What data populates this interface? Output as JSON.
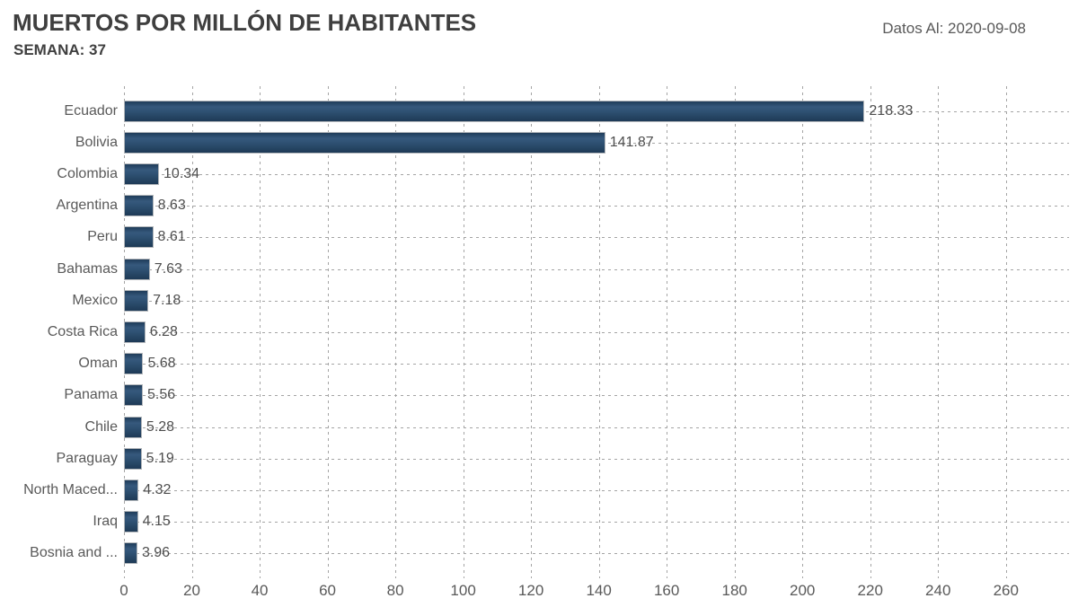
{
  "header": {
    "title": "MUERTOS POR MILLÓN DE HABITANTES",
    "subtitle": "SEMANA: 37",
    "data_as_of": "Datos Al: 2020-09-08"
  },
  "chart_data": {
    "type": "bar",
    "orientation": "horizontal",
    "title": "MUERTOS POR MILLÓN DE HABITANTES",
    "subtitle": "SEMANA: 37",
    "annotation": "Datos Al: 2020-09-08",
    "categories": [
      "Ecuador",
      "Bolivia",
      "Colombia",
      "Argentina",
      "Peru",
      "Bahamas",
      "Mexico",
      "Costa Rica",
      "Oman",
      "Panama",
      "Chile",
      "Paraguay",
      "North Maced...",
      "Iraq",
      "Bosnia and ..."
    ],
    "values": [
      218.33,
      141.87,
      10.34,
      8.63,
      8.61,
      7.63,
      7.18,
      6.28,
      5.68,
      5.56,
      5.28,
      5.19,
      4.32,
      4.15,
      3.96
    ],
    "value_decimals": 2,
    "xticks": [
      0,
      20,
      40,
      60,
      80,
      100,
      120,
      140,
      160,
      180,
      200,
      220,
      240,
      260
    ],
    "xlim": [
      0,
      278.6
    ],
    "grid": "dashed",
    "legend": "none",
    "colors": {
      "bar": "#2d4f70",
      "bar_gradient_top": "#36597d",
      "bar_gradient_bottom": "#1e3a56",
      "gridline": "#a4a4a4",
      "title_text": "#3f3f3f",
      "label_text": "#595959",
      "value_text": "#4d4d4d"
    }
  }
}
